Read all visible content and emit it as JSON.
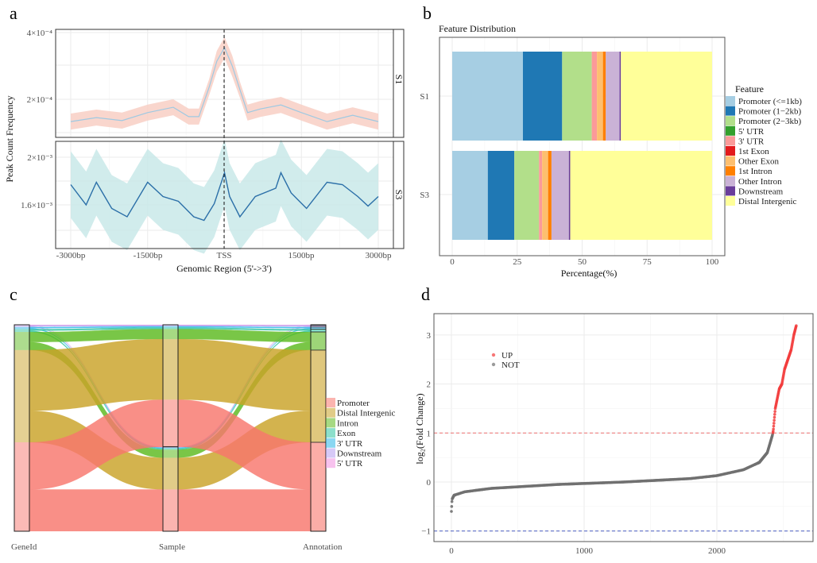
{
  "panel_labels": {
    "a": "a",
    "b": "b",
    "c": "c",
    "d": "d"
  },
  "chart_data": [
    {
      "panel": "a",
      "type": "line",
      "xlabel": "Genomic Region (5'->3')",
      "ylabel": "Peak Count Frequency",
      "x_ticks": [
        "-3000bp",
        "-1500bp",
        "TSS",
        "1500bp",
        "3000bp"
      ],
      "xlim": [
        -3000,
        3000
      ],
      "vline_at": 0,
      "grid": true,
      "facets": [
        {
          "name": "S1",
          "y_ticks": [
            "4×10⁻⁴",
            "2×10⁻⁴"
          ],
          "y_tick_values": [
            0.0004,
            0.0002
          ],
          "line_color": "#9ec9e2",
          "band_color": "#f8cfc4",
          "x": [
            -3000,
            -2500,
            -2000,
            -1500,
            -1000,
            -700,
            -500,
            -300,
            -150,
            0,
            150,
            300,
            450,
            700,
            1100,
            1500,
            2000,
            2500,
            3000
          ],
          "y": [
            0.000133,
            0.000145,
            0.000136,
            0.00016,
            0.000176,
            0.000148,
            0.000148,
            0.000236,
            0.000314,
            0.000355,
            0.0003,
            0.000229,
            0.00016,
            0.000171,
            0.000183,
            0.00016,
            0.000133,
            0.000152,
            0.000133
          ],
          "ci_halfwidth": 2.4e-05
        },
        {
          "name": "S3",
          "y_ticks": [
            "2×10⁻³",
            "1.6×10⁻³"
          ],
          "y_tick_values": [
            0.002,
            0.0016
          ],
          "line_color": "#2b6fa8",
          "band_color": "#c9e9e9",
          "x": [
            -3000,
            -2700,
            -2500,
            -2200,
            -1900,
            -1500,
            -1200,
            -900,
            -600,
            -400,
            -200,
            0,
            100,
            300,
            600,
            1000,
            1100,
            1300,
            1600,
            2000,
            2300,
            2600,
            2800,
            3000
          ],
          "y": [
            0.00177,
            0.0016,
            0.00179,
            0.00157,
            0.0015,
            0.00179,
            0.00167,
            0.00163,
            0.0015,
            0.00147,
            0.00161,
            0.00187,
            0.00167,
            0.0015,
            0.00167,
            0.00174,
            0.00187,
            0.0017,
            0.00157,
            0.00179,
            0.00177,
            0.00167,
            0.00159,
            0.00167
          ],
          "ci_halfwidth": 0.00028
        }
      ]
    },
    {
      "panel": "b",
      "type": "bar",
      "orientation": "horizontal-stacked",
      "title": "Feature Distribution",
      "xlabel": "Percentage(%)",
      "xlim": [
        0,
        100
      ],
      "x_ticks": [
        "0",
        "25",
        "50",
        "75",
        "100"
      ],
      "categories": [
        "S1",
        "S3"
      ],
      "legend_title": "Feature",
      "legend_position": "right",
      "series": [
        {
          "name": "Promoter (<=1kb)",
          "color": "#a6cee3",
          "values": [
            27.2,
            13.7
          ]
        },
        {
          "name": "Promoter (1−2kb)",
          "color": "#1f78b4",
          "values": [
            15.1,
            10.2
          ]
        },
        {
          "name": "Promoter (2−3kb)",
          "color": "#b2df8a",
          "values": [
            11.4,
            9.5
          ]
        },
        {
          "name": "5' UTR",
          "color": "#33a02c",
          "values": [
            0.0,
            0.0
          ]
        },
        {
          "name": "3' UTR",
          "color": "#fb9a99",
          "values": [
            2.0,
            1.2
          ]
        },
        {
          "name": "1st Exon",
          "color": "#e31a1c",
          "values": [
            0.0,
            0.0
          ]
        },
        {
          "name": "Other Exon",
          "color": "#fdbf6f",
          "values": [
            2.3,
            2.3
          ]
        },
        {
          "name": "1st Intron",
          "color": "#ff7f00",
          "values": [
            1.1,
            1.3
          ]
        },
        {
          "name": "Other Intron",
          "color": "#cab2d6",
          "values": [
            5.3,
            6.7
          ]
        },
        {
          "name": "Downstream",
          "color": "#6a3d9a",
          "values": [
            0.5,
            0.5
          ]
        },
        {
          "name": "Distal Intergenic",
          "color": "#ffff99",
          "values": [
            35.1,
            54.6
          ]
        }
      ]
    },
    {
      "panel": "c",
      "type": "alluvial",
      "axes": [
        "GeneId",
        "Sample",
        "Annotation"
      ],
      "legend_position": "right",
      "annotations": [
        {
          "name": "Promoter",
          "color": "#f8766d",
          "values": [
            22.9,
            20.3
          ]
        },
        {
          "name": "Distal Intergenic",
          "color": "#c9a227",
          "values": [
            29.4,
            15.4
          ]
        },
        {
          "name": "Intron",
          "color": "#5cb91e",
          "values": [
            4.9,
            3.9
          ]
        },
        {
          "name": "Exon",
          "color": "#2ec4a0",
          "values": [
            0.8,
            0.6
          ]
        },
        {
          "name": "3' UTR",
          "color": "#29b6e8",
          "values": [
            0.6,
            0.4
          ]
        },
        {
          "name": "Downstream",
          "color": "#b49cf0",
          "values": [
            0.5,
            0.3
          ]
        },
        {
          "name": "5' UTR",
          "color": "#f08fe0",
          "values": [
            0.2,
            0.1
          ]
        }
      ],
      "stack_order": [
        "5' UTR",
        "Downstream",
        "3' UTR",
        "Exon",
        "Intron",
        "Distal Intergenic",
        "Promoter"
      ]
    },
    {
      "panel": "d",
      "type": "scatter",
      "ylabel": "log₂(Fold Change)",
      "xlim": [
        -50,
        2700
      ],
      "ylim": [
        -1.2,
        3.45
      ],
      "x_ticks": [
        "0",
        "1000",
        "2000"
      ],
      "y_ticks": [
        "3",
        "2",
        "1",
        "0",
        "−1"
      ],
      "hlines": [
        {
          "y": 1,
          "color": "#f08080"
        },
        {
          "y": -1,
          "color": "#6070c8"
        }
      ],
      "legend": [
        {
          "name": "UP",
          "color": "#f23c3c"
        },
        {
          "name": "NOT",
          "color": "#707070"
        }
      ],
      "legend_position": "top-left",
      "threshold": 1,
      "curve_rank": [
        0,
        5,
        20,
        100,
        300,
        800,
        1300,
        1800,
        2000,
        2200,
        2320,
        2380,
        2418,
        2425,
        2440,
        2470,
        2490,
        2510,
        2560,
        2580,
        2599
      ],
      "curve_value": [
        -0.6,
        -0.35,
        -0.27,
        -0.2,
        -0.13,
        -0.05,
        0.0,
        0.07,
        0.13,
        0.25,
        0.4,
        0.6,
        0.95,
        1.05,
        1.5,
        1.9,
        2.0,
        2.3,
        2.7,
        3.0,
        3.2
      ]
    }
  ]
}
